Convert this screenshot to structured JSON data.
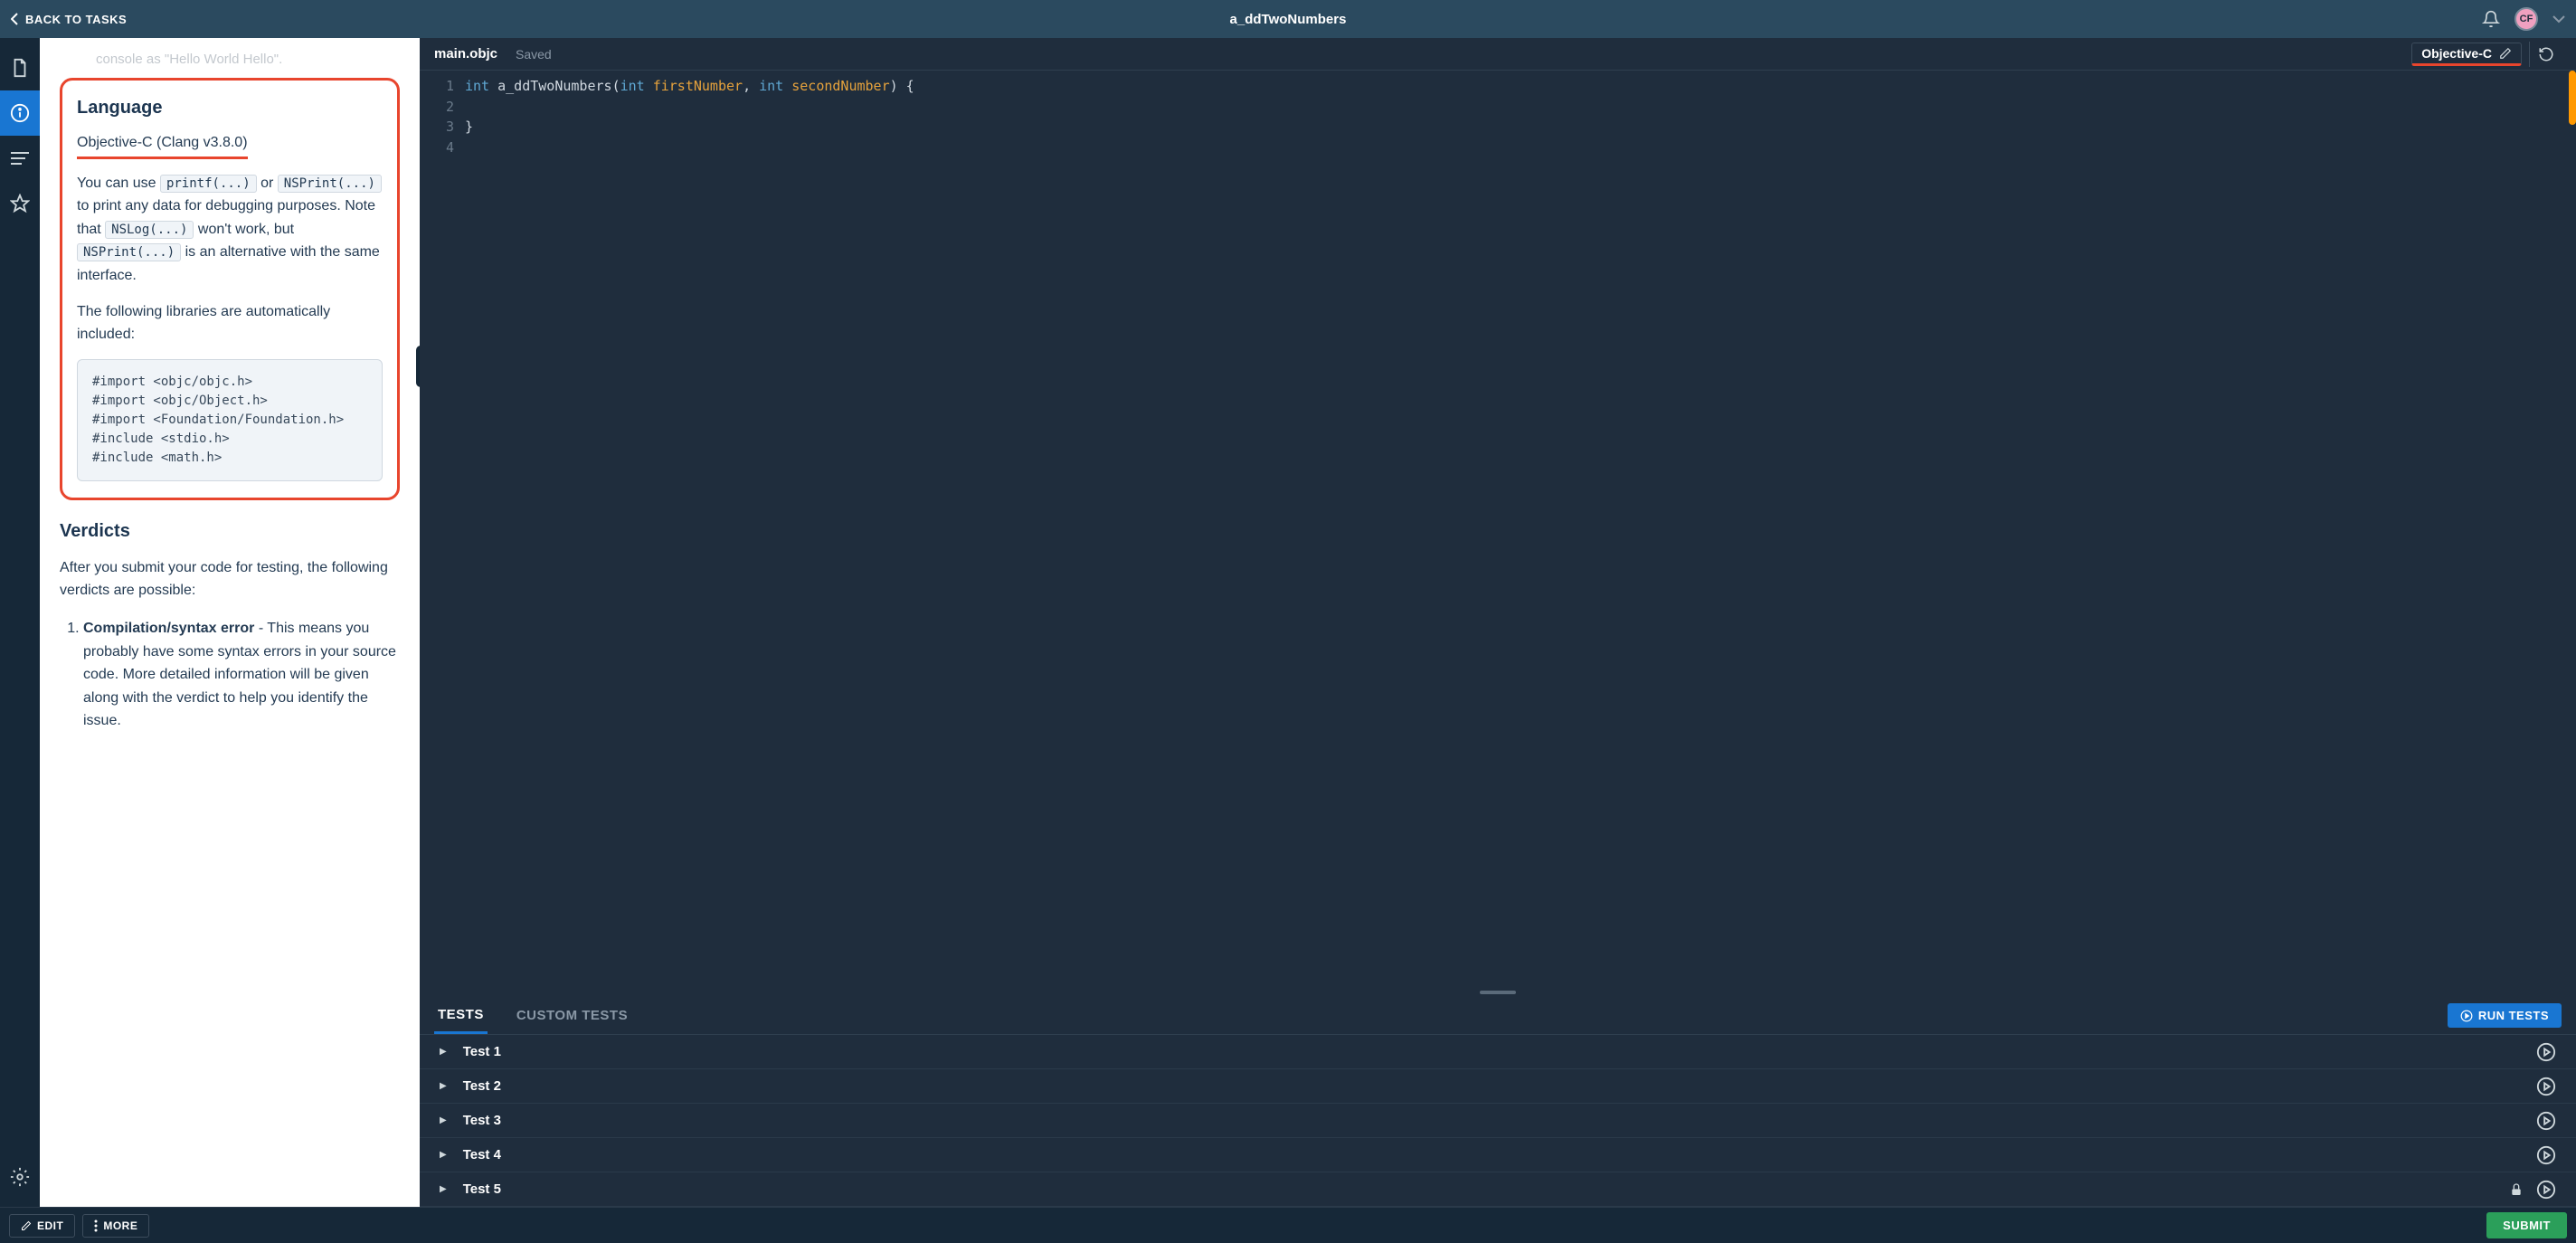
{
  "topbar": {
    "back_label": "BACK TO TASKS",
    "title": "a_ddTwoNumbers",
    "avatar_initials": "CF"
  },
  "colors": {
    "topbar_bg": "#2b4a5f",
    "rail_bg": "#162838",
    "accent_blue": "#1976d2",
    "highlight_red": "#e8452d",
    "submit_green": "#2b9f5a",
    "scrollbar_orange": "#ff9800",
    "panel_bg": "#1f2d3d"
  },
  "description": {
    "console_fragment": "console as \"Hello World Hello\".",
    "language_heading": "Language",
    "language_version": "Objective-C (Clang v3.8.0)",
    "para1_parts": {
      "p1": "You can use ",
      "c1": "printf(...)",
      "p2": " or ",
      "c2": "NSPrint(...)",
      "p3": " to print any data for debugging purposes. Note that ",
      "c3": "NSLog(...)",
      "p4": " won't work, but ",
      "c4": "NSPrint(...)",
      "p5": " is an alternative with the same interface."
    },
    "libs_intro": "The following libraries are automatically included:",
    "libs_code": "#import <objc/objc.h>\n#import <objc/Object.h>\n#import <Foundation/Foundation.h>\n#include <stdio.h>\n#include <math.h>",
    "verdicts_heading": "Verdicts",
    "verdicts_intro": "After you submit your code for testing, the following verdicts are possible:",
    "verdict1_bold": "Compilation/syntax error",
    "verdict1_rest": " - This means you probably have some syntax errors in your source code. More detailed information will be given along with the verdict to help you identify the issue."
  },
  "editor": {
    "filename": "main.objc",
    "status": "Saved",
    "language_label": "Objective-C",
    "line_numbers": [
      "1",
      "2",
      "3",
      "4"
    ],
    "code_lines": [
      {
        "tokens": [
          {
            "t": "int ",
            "c": "kw"
          },
          {
            "t": "a_ddTwoNumbers",
            "c": "fn"
          },
          {
            "t": "(",
            "c": "pn"
          },
          {
            "t": "int ",
            "c": "kw"
          },
          {
            "t": "firstNumber",
            "c": "id"
          },
          {
            "t": ", ",
            "c": "pn"
          },
          {
            "t": "int ",
            "c": "kw"
          },
          {
            "t": "secondNumber",
            "c": "id"
          },
          {
            "t": ") {",
            "c": "pn"
          }
        ]
      },
      {
        "tokens": []
      },
      {
        "tokens": [
          {
            "t": "}",
            "c": "pn"
          }
        ]
      },
      {
        "tokens": []
      }
    ]
  },
  "tests": {
    "tab_tests": "TESTS",
    "tab_custom": "CUSTOM TESTS",
    "run_label": "RUN TESTS",
    "items": [
      {
        "name": "Test 1",
        "locked": false
      },
      {
        "name": "Test 2",
        "locked": false
      },
      {
        "name": "Test 3",
        "locked": false
      },
      {
        "name": "Test 4",
        "locked": false
      },
      {
        "name": "Test 5",
        "locked": true
      }
    ]
  },
  "bottombar": {
    "edit": "EDIT",
    "more": "MORE",
    "submit": "SUBMIT"
  }
}
